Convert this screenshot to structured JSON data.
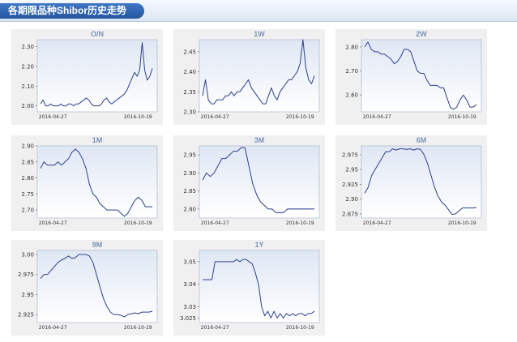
{
  "header": {
    "title": "各期限品种Shibor历史走势"
  },
  "colors": {
    "line": "#2f3f8f",
    "plot_top": "#dfe7f4",
    "plot_bottom": "#ffffff",
    "frame": "#9fb0c8"
  },
  "chart_data": [
    {
      "type": "line",
      "title": "O/N",
      "x_tick_labels": [
        "2016-04-27",
        "2016-10-19"
      ],
      "y_ticks": [
        "2.00",
        "2.10",
        "2.20",
        "2.30"
      ],
      "ylim": [
        1.97,
        2.335
      ],
      "values": [
        2.01,
        2.03,
        2.0,
        2.0,
        2.01,
        2.0,
        2.0,
        2.0,
        2.01,
        2.0,
        2.0,
        2.01,
        2.01,
        2.0,
        2.01,
        2.01,
        2.02,
        2.03,
        2.04,
        2.03,
        2.01,
        2.0,
        2.0,
        2.0,
        2.01,
        2.03,
        2.04,
        2.02,
        2.01,
        2.02,
        2.03,
        2.04,
        2.05,
        2.06,
        2.08,
        2.11,
        2.14,
        2.17,
        2.15,
        2.18,
        2.32,
        2.18,
        2.13,
        2.15,
        2.19
      ]
    },
    {
      "type": "line",
      "title": "1W",
      "x_tick_labels": [
        "2016-04-27",
        "2016-10-19"
      ],
      "y_ticks": [
        "2.30",
        "2.35",
        "2.40",
        "2.45"
      ],
      "ylim": [
        2.3,
        2.48
      ],
      "values": [
        2.34,
        2.38,
        2.33,
        2.32,
        2.32,
        2.33,
        2.33,
        2.33,
        2.34,
        2.34,
        2.35,
        2.34,
        2.35,
        2.35,
        2.36,
        2.37,
        2.38,
        2.36,
        2.35,
        2.34,
        2.33,
        2.32,
        2.32,
        2.34,
        2.36,
        2.34,
        2.33,
        2.35,
        2.36,
        2.37,
        2.38,
        2.38,
        2.39,
        2.4,
        2.42,
        2.48,
        2.41,
        2.38,
        2.37,
        2.39
      ]
    },
    {
      "type": "line",
      "title": "2W",
      "x_tick_labels": [
        "2016-04-27",
        "2016-10-19"
      ],
      "y_ticks": [
        "2.60",
        "2.70",
        "2.80"
      ],
      "ylim": [
        2.53,
        2.83
      ],
      "values": [
        2.8,
        2.82,
        2.79,
        2.78,
        2.78,
        2.77,
        2.77,
        2.76,
        2.75,
        2.73,
        2.74,
        2.76,
        2.79,
        2.79,
        2.78,
        2.74,
        2.7,
        2.69,
        2.69,
        2.66,
        2.64,
        2.64,
        2.64,
        2.63,
        2.63,
        2.59,
        2.55,
        2.54,
        2.55,
        2.58,
        2.6,
        2.58,
        2.55,
        2.55,
        2.56
      ]
    },
    {
      "type": "line",
      "title": "1M",
      "x_tick_labels": [
        "2016-04-27",
        "2016-10-19"
      ],
      "y_ticks": [
        "2.70",
        "2.75",
        "2.80",
        "2.85",
        "2.90"
      ],
      "ylim": [
        2.675,
        2.9
      ],
      "values": [
        2.83,
        2.85,
        2.84,
        2.84,
        2.84,
        2.85,
        2.84,
        2.85,
        2.86,
        2.88,
        2.89,
        2.88,
        2.86,
        2.83,
        2.78,
        2.75,
        2.74,
        2.72,
        2.71,
        2.7,
        2.7,
        2.7,
        2.7,
        2.69,
        2.68,
        2.69,
        2.71,
        2.73,
        2.74,
        2.73,
        2.71,
        2.71,
        2.71
      ]
    },
    {
      "type": "line",
      "title": "3M",
      "x_tick_labels": [
        "2016-04-27",
        "2016-10-19"
      ],
      "y_ticks": [
        "2.80",
        "2.85",
        "2.90",
        "2.95"
      ],
      "ylim": [
        2.775,
        2.975
      ],
      "values": [
        2.88,
        2.9,
        2.89,
        2.9,
        2.92,
        2.94,
        2.94,
        2.95,
        2.96,
        2.96,
        2.97,
        2.97,
        2.92,
        2.87,
        2.84,
        2.82,
        2.81,
        2.8,
        2.8,
        2.79,
        2.79,
        2.79,
        2.8,
        2.8,
        2.8,
        2.8,
        2.8,
        2.8,
        2.8,
        2.8
      ]
    },
    {
      "type": "line",
      "title": "6M",
      "x_tick_labels": [
        "2016-04-27",
        "2016-10-19"
      ],
      "y_ticks": [
        "2.875",
        "2.90",
        "2.925",
        "2.95",
        "2.975"
      ],
      "ylim": [
        2.868,
        2.99
      ],
      "values": [
        2.91,
        2.92,
        2.94,
        2.95,
        2.96,
        2.97,
        2.98,
        2.98,
        2.985,
        2.983,
        2.985,
        2.985,
        2.984,
        2.985,
        2.983,
        2.985,
        2.984,
        2.975,
        2.96,
        2.94,
        2.92,
        2.905,
        2.895,
        2.89,
        2.882,
        2.874,
        2.875,
        2.88,
        2.885,
        2.885,
        2.885,
        2.885,
        2.886
      ]
    },
    {
      "type": "line",
      "title": "9M",
      "x_tick_labels": [
        "2016-04-27",
        "2016-10-19"
      ],
      "y_ticks": [
        "2.925",
        "2.95",
        "2.975",
        "3.00"
      ],
      "ylim": [
        2.915,
        3.005
      ],
      "values": [
        2.97,
        2.975,
        2.975,
        2.98,
        2.985,
        2.99,
        2.993,
        2.995,
        2.998,
        2.995,
        2.996,
        3.0,
        3.0,
        3.0,
        2.998,
        2.99,
        2.975,
        2.96,
        2.945,
        2.935,
        2.928,
        2.925,
        2.925,
        2.924,
        2.922,
        2.925,
        2.926,
        2.927,
        2.926,
        2.928,
        2.928,
        2.928,
        2.929
      ]
    },
    {
      "type": "line",
      "title": "1Y",
      "x_tick_labels": [
        "2016-04-27",
        "2016-10-19"
      ],
      "y_ticks": [
        "3.025",
        "3.03",
        "3.04",
        "3.05"
      ],
      "ylim": [
        3.023,
        3.055
      ],
      "values": [
        3.042,
        3.042,
        3.042,
        3.042,
        3.05,
        3.05,
        3.05,
        3.05,
        3.05,
        3.05,
        3.05,
        3.051,
        3.05,
        3.051,
        3.051,
        3.05,
        3.049,
        3.045,
        3.04,
        3.03,
        3.026,
        3.028,
        3.025,
        3.028,
        3.025,
        3.027,
        3.025,
        3.027,
        3.026,
        3.027,
        3.026,
        3.027,
        3.027,
        3.026,
        3.027,
        3.027,
        3.028
      ]
    }
  ]
}
